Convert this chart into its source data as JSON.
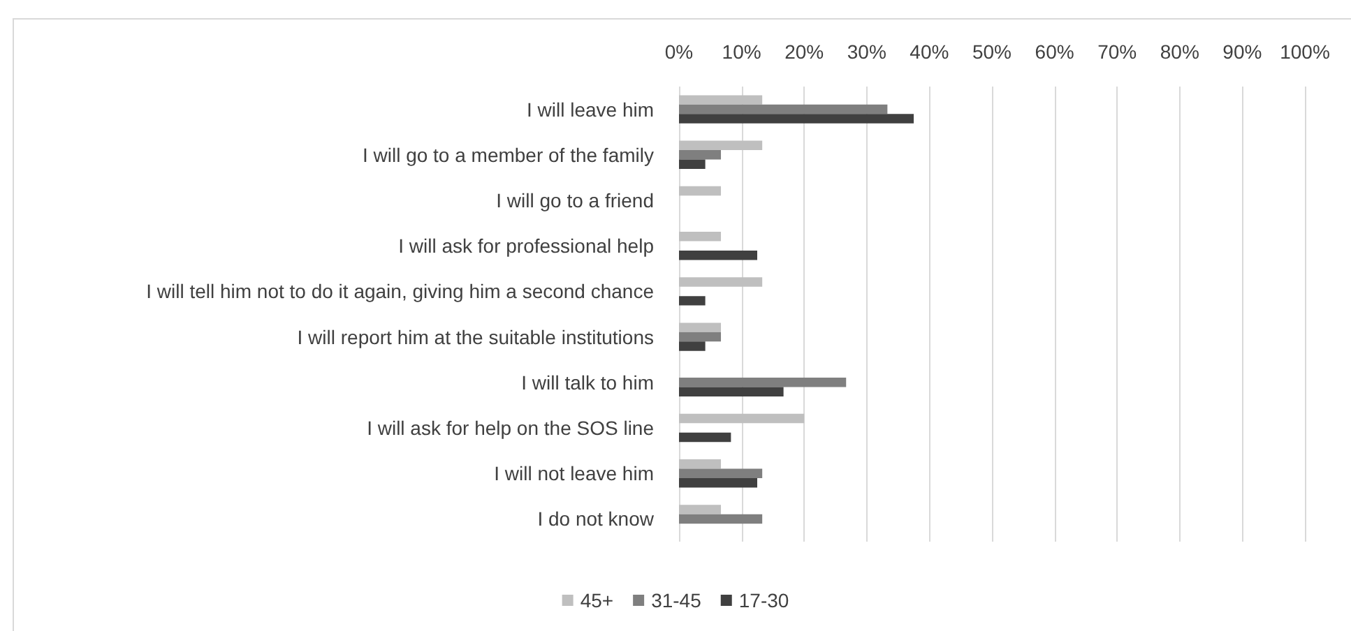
{
  "chart_data": {
    "type": "bar",
    "orientation": "horizontal",
    "categories": [
      "I will leave him",
      "I will go to a member of the family",
      "I will go to a friend",
      "I will ask for professional help",
      "I will tell him not to do it again, giving him a second chance",
      "I will report him at the suitable institutions",
      "I will talk to him",
      "I will ask for help on the SOS line",
      "I will not leave him",
      "I do not know"
    ],
    "series": [
      {
        "name": "45+",
        "color": "#bfbfbf",
        "values": [
          13.3,
          13.3,
          6.7,
          6.7,
          13.3,
          6.7,
          0,
          20,
          6.7,
          6.7
        ]
      },
      {
        "name": "31-45",
        "color": "#7f7f7f",
        "values": [
          33.3,
          6.7,
          0,
          0,
          0,
          6.7,
          26.7,
          0,
          13.3,
          13.3
        ]
      },
      {
        "name": "17-30",
        "color": "#404040",
        "values": [
          37.5,
          4.2,
          0,
          12.5,
          4.2,
          4.2,
          16.7,
          8.3,
          12.5,
          0
        ]
      }
    ],
    "xlim": [
      0,
      100
    ],
    "xticks": [
      {
        "value": 0,
        "label": "0%"
      },
      {
        "value": 10,
        "label": "10%"
      },
      {
        "value": 20,
        "label": "20%"
      },
      {
        "value": 30,
        "label": "30%"
      },
      {
        "value": 40,
        "label": "40%"
      },
      {
        "value": 50,
        "label": "50%"
      },
      {
        "value": 60,
        "label": "60%"
      },
      {
        "value": 70,
        "label": "70%"
      },
      {
        "value": 80,
        "label": "80%"
      },
      {
        "value": 90,
        "label": "90%"
      },
      {
        "value": 100,
        "label": "100%"
      }
    ],
    "grid": "x",
    "legend": "bottom"
  }
}
